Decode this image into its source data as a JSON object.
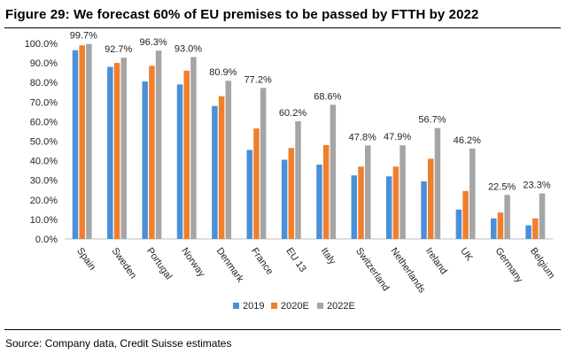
{
  "header": {
    "title": "Figure 29: We forecast 60% of EU premises to be passed by FTTH by 2022"
  },
  "footer": {
    "source": "Source: Company data, Credit Suisse estimates"
  },
  "colors": {
    "s2019": "#4a90d9",
    "s2020E": "#f07f2d",
    "s2022E": "#a5a5a5",
    "axis": "#bfbfbf"
  },
  "chart_data": {
    "type": "bar",
    "title": "",
    "xlabel": "",
    "ylabel": "",
    "ylim": [
      0,
      100
    ],
    "yticks": [
      "0.0%",
      "10.0%",
      "20.0%",
      "30.0%",
      "40.0%",
      "50.0%",
      "60.0%",
      "70.0%",
      "80.0%",
      "90.0%",
      "100.0%"
    ],
    "categories": [
      "Spain",
      "Sweden",
      "Portugal",
      "Norway",
      "Denmark",
      "France",
      "EU 13",
      "Italy",
      "Switzerland",
      "Netherlands",
      "Ireland",
      "UK",
      "Germany",
      "Belgium"
    ],
    "series": [
      {
        "name": "2019",
        "values": [
          96.5,
          88.0,
          80.5,
          79.0,
          68.0,
          45.5,
          40.5,
          38.0,
          32.5,
          32.0,
          29.5,
          15.0,
          10.5,
          7.0
        ]
      },
      {
        "name": "2020E",
        "values": [
          99.0,
          90.0,
          88.5,
          86.0,
          73.0,
          56.5,
          46.5,
          48.0,
          37.0,
          37.0,
          41.0,
          24.5,
          13.5,
          10.5
        ]
      },
      {
        "name": "2022E",
        "values": [
          99.7,
          92.7,
          96.3,
          93.0,
          80.9,
          77.2,
          60.2,
          68.6,
          47.8,
          47.9,
          56.7,
          46.2,
          22.5,
          23.3
        ]
      }
    ],
    "data_labels": [
      "99.7%",
      "92.7%",
      "96.3%",
      "93.0%",
      "80.9%",
      "77.2%",
      "60.2%",
      "68.6%",
      "47.8%",
      "47.9%",
      "56.7%",
      "46.2%",
      "22.5%",
      "23.3%"
    ],
    "legend": {
      "position": "bottom",
      "entries": [
        "2019",
        "2020E",
        "2022E"
      ]
    },
    "grid": false
  }
}
